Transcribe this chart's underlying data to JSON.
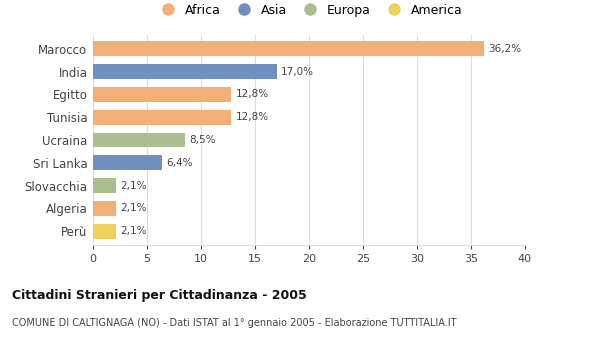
{
  "categories": [
    "Marocco",
    "India",
    "Egitto",
    "Tunisia",
    "Ucraina",
    "Sri Lanka",
    "Slovacchia",
    "Algeria",
    "Perù"
  ],
  "values": [
    36.2,
    17.0,
    12.8,
    12.8,
    8.5,
    6.4,
    2.1,
    2.1,
    2.1
  ],
  "labels": [
    "36,2%",
    "17,0%",
    "12,8%",
    "12,8%",
    "8,5%",
    "6,4%",
    "2,1%",
    "2,1%",
    "2,1%"
  ],
  "continents": [
    "Africa",
    "Asia",
    "Africa",
    "Africa",
    "Europa",
    "Asia",
    "Europa",
    "Africa",
    "America"
  ],
  "colors": {
    "Africa": "#F2AF78",
    "Asia": "#7090C0",
    "Europa": "#ABBE90",
    "America": "#EDD060"
  },
  "legend_order": [
    "Africa",
    "Asia",
    "Europa",
    "America"
  ],
  "xlim": [
    0,
    40
  ],
  "xticks": [
    0,
    5,
    10,
    15,
    20,
    25,
    30,
    35,
    40
  ],
  "title_bold": "Cittadini Stranieri per Cittadinanza - 2005",
  "subtitle": "COMUNE DI CALTIGNAGA (NO) - Dati ISTAT al 1° gennaio 2005 - Elaborazione TUTTITALIA.IT",
  "bg_color": "#ffffff",
  "grid_color": "#dddddd"
}
